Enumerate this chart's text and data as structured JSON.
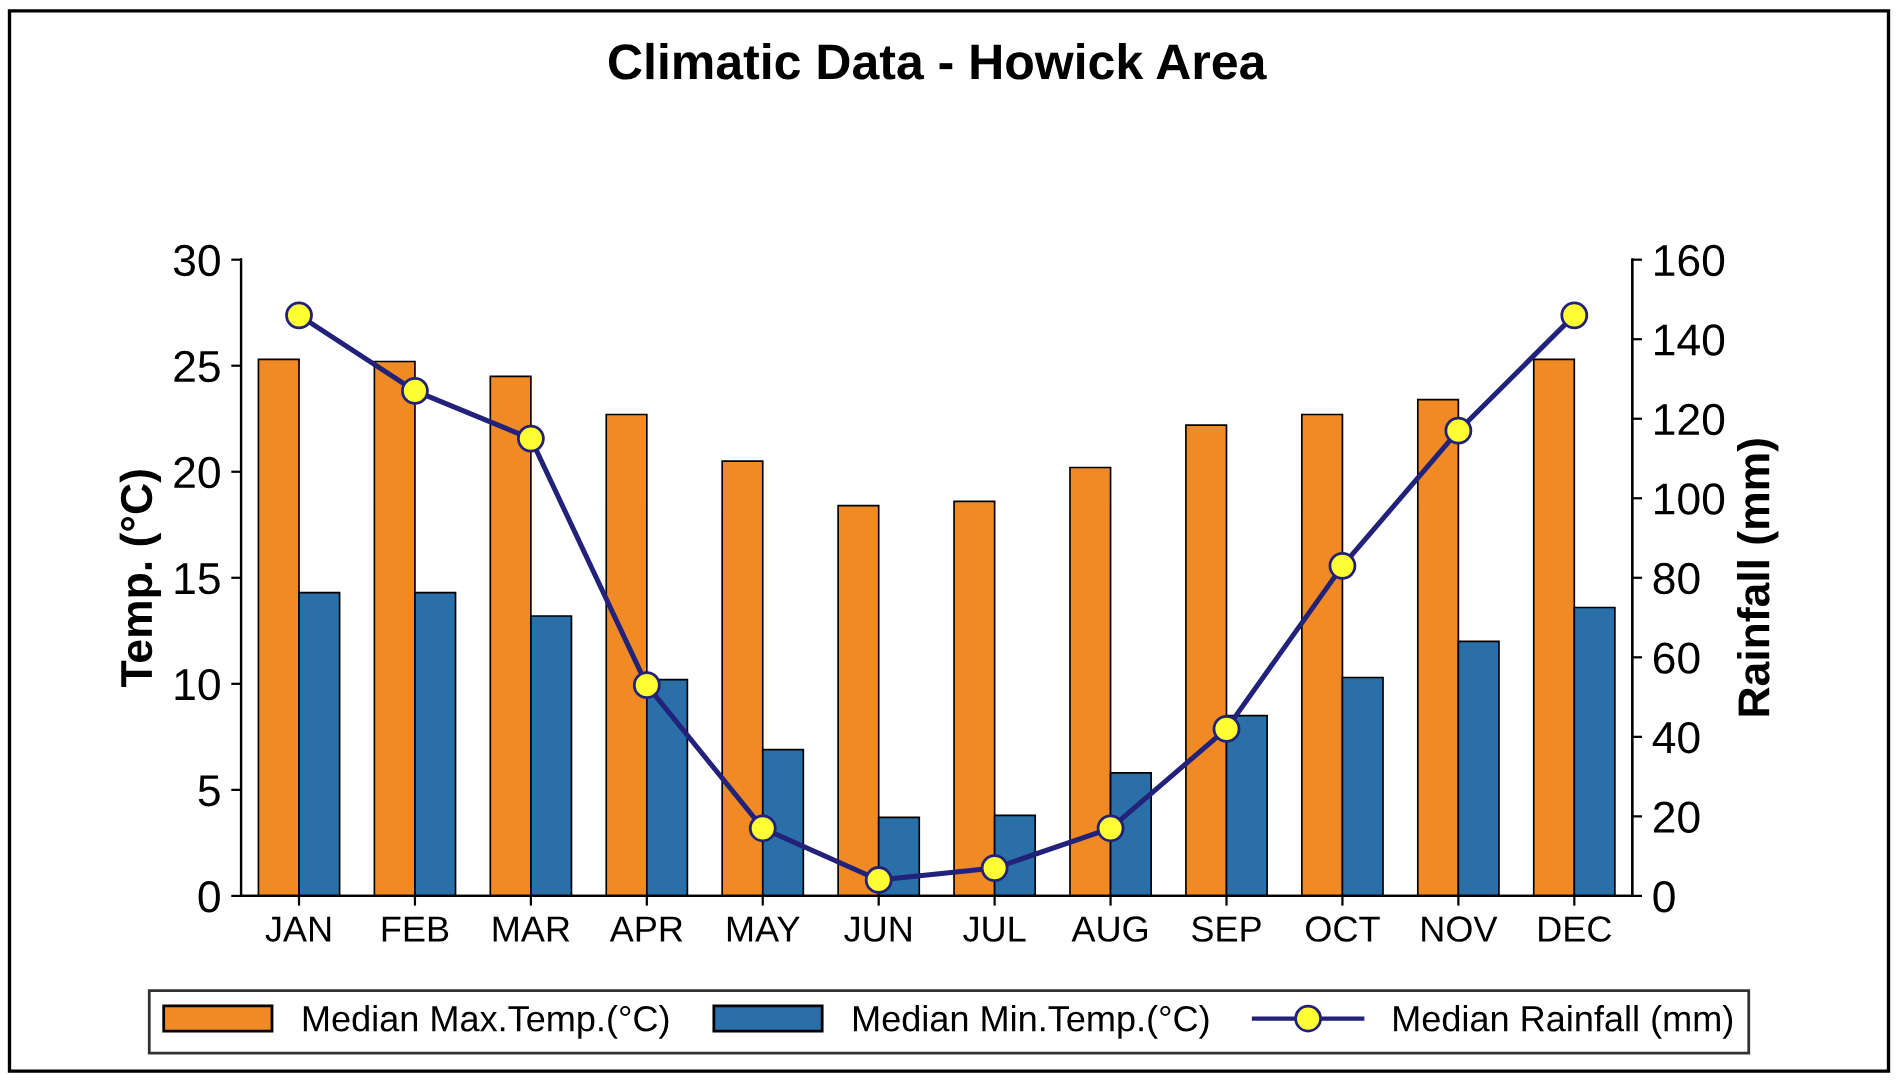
{
  "chart_data": {
    "type": "bar",
    "title": "Climatic Data - Howick Area",
    "ylabel": "Temp. (°C)",
    "y2label": "Rainfall (mm)",
    "categories": [
      "JAN",
      "FEB",
      "MAR",
      "APR",
      "MAY",
      "JUN",
      "JUL",
      "AUG",
      "SEP",
      "OCT",
      "NOV",
      "DEC"
    ],
    "series": [
      {
        "name": "Median Max.Temp.(°C)",
        "color": "#f08a24",
        "values": [
          25.3,
          25.2,
          24.5,
          22.7,
          20.5,
          18.4,
          18.6,
          20.2,
          22.2,
          22.7,
          23.4,
          25.3
        ]
      },
      {
        "name": "Median Min.Temp.(°C)",
        "color": "#2a6fa8",
        "values": [
          14.3,
          14.3,
          13.2,
          10.2,
          6.9,
          3.7,
          3.8,
          5.8,
          8.5,
          10.3,
          12.0,
          13.6
        ]
      },
      {
        "name": "Median Rainfall (mm)",
        "type": "line",
        "axis": "y2",
        "color": "#22227a",
        "marker": "circle",
        "values": [
          146,
          127,
          115,
          53,
          17,
          4,
          7,
          17,
          42,
          83,
          117,
          146
        ]
      }
    ],
    "ylim": [
      0,
      30
    ],
    "yticks": [
      0,
      5,
      10,
      15,
      20,
      25,
      30
    ],
    "y2lim": [
      0,
      160
    ],
    "y2ticks": [
      0,
      20,
      40,
      60,
      80,
      100,
      120,
      140,
      160
    ],
    "legend": "bottom",
    "grid": false
  }
}
